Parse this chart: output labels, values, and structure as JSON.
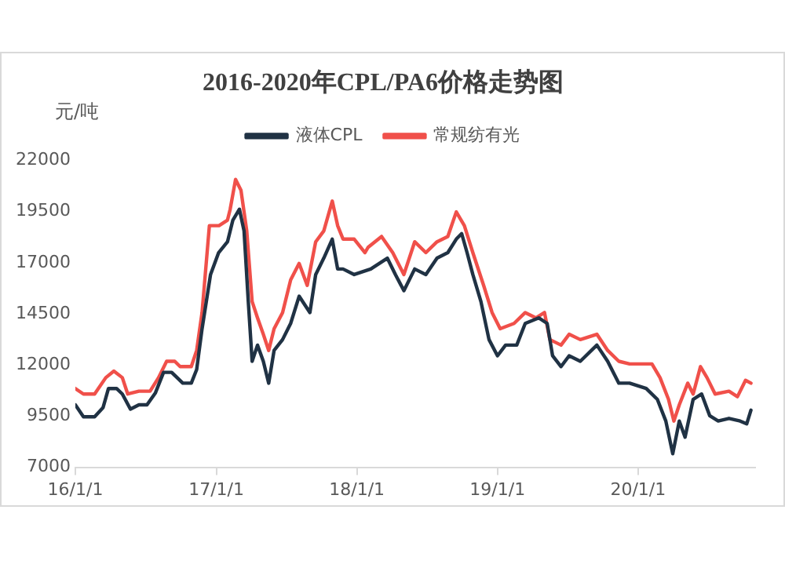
{
  "chart_data": {
    "type": "line",
    "title": "2016-2020年CPL/PA6价格走势图",
    "ylabel": "元/吨",
    "legend": "top",
    "grid": false,
    "marker": "none",
    "line_style": "solid",
    "xlim": [
      "2016-01-01",
      "2020-10-31"
    ],
    "xticks": [
      {
        "value": "2016-01-01",
        "label": "16/1/1"
      },
      {
        "value": "2017-01-01",
        "label": "17/1/1"
      },
      {
        "value": "2018-01-01",
        "label": "18/1/1"
      },
      {
        "value": "2019-01-01",
        "label": "19/1/1"
      },
      {
        "value": "2020-01-01",
        "label": "20/1/1"
      }
    ],
    "ylim": [
      7000,
      22000
    ],
    "yticks": [
      7000,
      9500,
      12000,
      14500,
      17000,
      19500,
      22000
    ],
    "series": [
      {
        "name": "液体CPL",
        "color": "#203244",
        "x": [
          "2016-01-01",
          "2016-01-22",
          "2016-02-20",
          "2016-03-13",
          "2016-03-27",
          "2016-04-17",
          "2016-05-02",
          "2016-05-23",
          "2016-06-14",
          "2016-07-05",
          "2016-07-27",
          "2016-08-17",
          "2016-09-07",
          "2016-10-06",
          "2016-10-28",
          "2016-11-11",
          "2016-11-25",
          "2016-12-17",
          "2017-01-07",
          "2017-01-30",
          "2017-02-13",
          "2017-03-02",
          "2017-03-14",
          "2017-03-25",
          "2017-04-04",
          "2017-04-18",
          "2017-05-03",
          "2017-05-17",
          "2017-05-31",
          "2017-06-22",
          "2017-07-13",
          "2017-08-04",
          "2017-09-01",
          "2017-09-16",
          "2017-10-07",
          "2017-10-29",
          "2017-11-12",
          "2017-11-26",
          "2017-12-25",
          "2018-02-06",
          "2018-03-21",
          "2018-04-11",
          "2018-05-03",
          "2018-05-31",
          "2018-06-29",
          "2018-07-28",
          "2018-08-25",
          "2018-09-16",
          "2018-09-30",
          "2018-10-14",
          "2018-10-29",
          "2018-11-19",
          "2018-12-10",
          "2019-01-01",
          "2019-01-22",
          "2019-02-20",
          "2019-03-14",
          "2019-04-18",
          "2019-05-10",
          "2019-05-24",
          "2019-06-15",
          "2019-07-06",
          "2019-08-04",
          "2019-09-16",
          "2019-10-14",
          "2019-11-12",
          "2019-12-10",
          "2020-01-22",
          "2020-02-20",
          "2020-03-13",
          "2020-03-31",
          "2020-04-17",
          "2020-05-02",
          "2020-05-23",
          "2020-06-14",
          "2020-07-05",
          "2020-07-27",
          "2020-08-24",
          "2020-09-22",
          "2020-10-09",
          "2020-10-20"
        ],
        "values": [
          10050,
          9470,
          9470,
          9920,
          10850,
          10850,
          10580,
          9840,
          10050,
          10050,
          10640,
          11640,
          11640,
          11110,
          11110,
          11780,
          13770,
          16420,
          17490,
          18020,
          19080,
          19610,
          18550,
          15100,
          12180,
          12970,
          12180,
          11110,
          12710,
          13240,
          14030,
          15360,
          14560,
          16420,
          17220,
          18150,
          16690,
          16690,
          16420,
          16690,
          17220,
          16420,
          15630,
          16690,
          16420,
          17220,
          17490,
          18150,
          18420,
          17490,
          16420,
          15100,
          13240,
          12450,
          12970,
          12970,
          14030,
          14300,
          14030,
          12450,
          11920,
          12450,
          12180,
          12970,
          12180,
          11110,
          11110,
          10850,
          10320,
          9260,
          7660,
          9260,
          8470,
          10320,
          10580,
          9520,
          9260,
          9390,
          9260,
          9120,
          9790
        ]
      },
      {
        "name": "常规纺有光",
        "color": "#f0504a",
        "x": [
          "2016-01-01",
          "2016-01-22",
          "2016-02-20",
          "2016-03-20",
          "2016-04-10",
          "2016-05-02",
          "2016-05-16",
          "2016-06-14",
          "2016-07-13",
          "2016-08-04",
          "2016-08-25",
          "2016-09-15",
          "2016-09-29",
          "2016-10-28",
          "2016-11-11",
          "2016-11-25",
          "2016-12-14",
          "2017-01-08",
          "2017-01-30",
          "2017-02-06",
          "2017-02-20",
          "2017-03-06",
          "2017-03-21",
          "2017-04-04",
          "2017-04-18",
          "2017-05-03",
          "2017-05-17",
          "2017-05-31",
          "2017-06-22",
          "2017-07-13",
          "2017-08-04",
          "2017-08-25",
          "2017-09-16",
          "2017-10-07",
          "2017-10-29",
          "2017-11-12",
          "2017-11-26",
          "2017-12-25",
          "2018-01-22",
          "2018-01-30",
          "2018-03-06",
          "2018-04-04",
          "2018-05-03",
          "2018-05-31",
          "2018-06-29",
          "2018-07-28",
          "2018-08-25",
          "2018-09-16",
          "2018-10-07",
          "2018-10-29",
          "2018-11-26",
          "2018-12-18",
          "2019-01-08",
          "2019-02-13",
          "2019-03-14",
          "2019-04-11",
          "2019-05-03",
          "2019-05-17",
          "2019-06-15",
          "2019-07-06",
          "2019-08-04",
          "2019-09-16",
          "2019-10-14",
          "2019-11-12",
          "2019-12-10",
          "2020-02-06",
          "2020-02-27",
          "2020-03-20",
          "2020-04-03",
          "2020-04-17",
          "2020-05-09",
          "2020-05-23",
          "2020-06-11",
          "2020-06-28",
          "2020-07-19",
          "2020-08-24",
          "2020-09-15",
          "2020-10-06",
          "2020-10-20"
        ],
        "values": [
          10850,
          10580,
          10580,
          11380,
          11700,
          11380,
          10580,
          10720,
          10720,
          11380,
          12180,
          12180,
          11920,
          11920,
          12710,
          14560,
          18810,
          18810,
          19080,
          19610,
          21070,
          20540,
          18550,
          15100,
          14300,
          13500,
          12710,
          13770,
          14560,
          16160,
          16960,
          15890,
          18020,
          18550,
          20010,
          18810,
          18150,
          18150,
          17490,
          17750,
          18280,
          17490,
          16420,
          18020,
          17490,
          18020,
          18280,
          19480,
          18810,
          17490,
          15890,
          14560,
          13770,
          14030,
          14560,
          14300,
          14560,
          13240,
          12970,
          13500,
          13240,
          13500,
          12710,
          12180,
          12050,
          12050,
          11380,
          10320,
          9260,
          10050,
          11110,
          10580,
          11920,
          11380,
          10580,
          10720,
          10450,
          11250,
          11110
        ]
      }
    ]
  }
}
